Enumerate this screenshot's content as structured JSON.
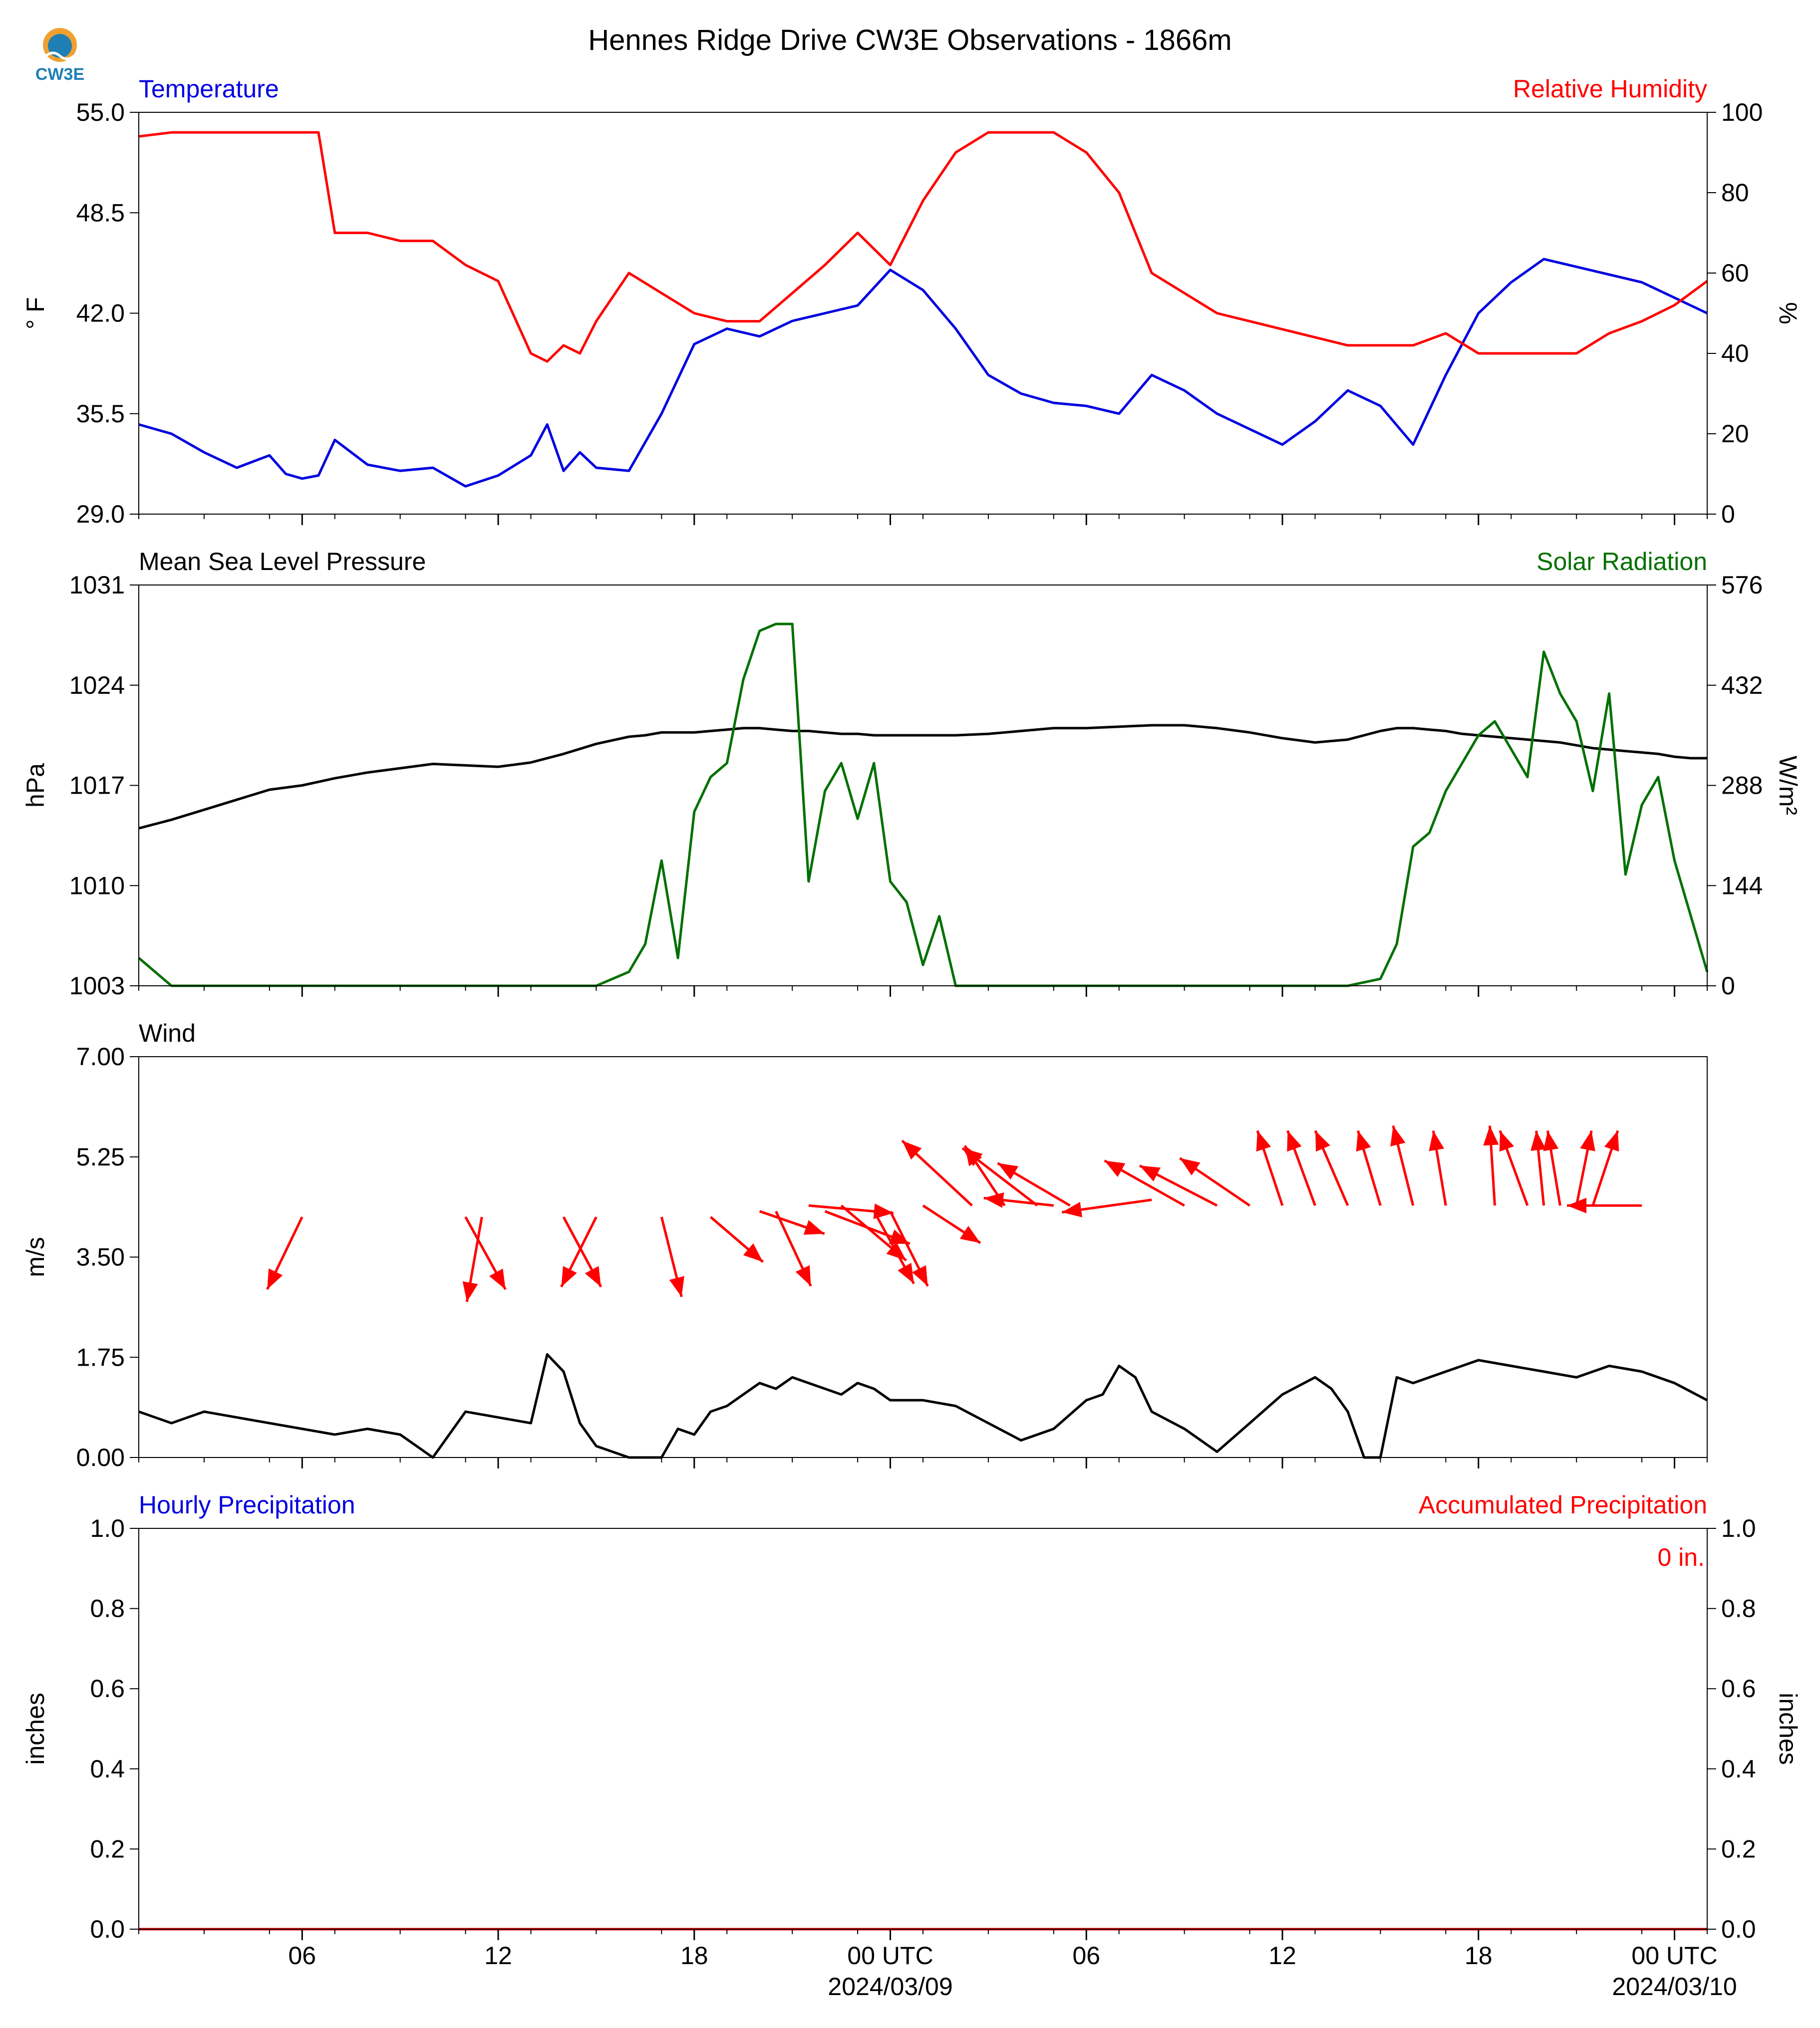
{
  "figure": {
    "title": "Hennes Ridge Drive CW3E Observations - 1866m",
    "logo_text": "CW3E",
    "colors": {
      "blue": "#0000e0",
      "red": "#ff0000",
      "green": "#007000",
      "black": "#000000",
      "logo_orange": "#f0a030",
      "logo_blue": "#1f7fb4"
    }
  },
  "chart_data": [
    {
      "id": "temp_rh",
      "type": "line",
      "left_label": "Temperature",
      "right_label": "Relative Humidity",
      "ylabel": "° F",
      "ylabel_right": "%",
      "ylim": [
        29.0,
        55.0
      ],
      "ylim_right": [
        0,
        100
      ],
      "yticks": [
        "29.0",
        "35.5",
        "42.0",
        "48.5",
        "55.0"
      ],
      "yticks_right": [
        "0",
        "20",
        "40",
        "60",
        "80",
        "100"
      ],
      "x": [
        0,
        1,
        2,
        3,
        4,
        4.5,
        5,
        5.5,
        6,
        7,
        8,
        9,
        10,
        11,
        12,
        12.5,
        13,
        13.5,
        14,
        15,
        16,
        17,
        18,
        19,
        20,
        21,
        22,
        23,
        24,
        25,
        26,
        27,
        28,
        29,
        30,
        31,
        32,
        33,
        34,
        35,
        36,
        37,
        38,
        39,
        40,
        41,
        42,
        43,
        44,
        45,
        46,
        47,
        48
      ],
      "series": [
        {
          "name": "Temperature",
          "color": "#0000e0",
          "axis": "left",
          "values": [
            34.8,
            34.2,
            33.0,
            32.0,
            32.8,
            31.6,
            31.3,
            31.5,
            33.8,
            32.2,
            31.8,
            32.0,
            30.8,
            31.5,
            32.8,
            34.8,
            31.8,
            33.0,
            32.0,
            31.8,
            35.5,
            40.0,
            41.0,
            40.5,
            41.5,
            42.0,
            42.5,
            44.8,
            43.5,
            41.0,
            38.0,
            36.8,
            36.2,
            36.0,
            35.5,
            38.0,
            37.0,
            35.5,
            34.5,
            33.5,
            35.0,
            37.0,
            36.0,
            33.5,
            38.0,
            42.0,
            44.0,
            45.5,
            45.0,
            44.5,
            44.0,
            43.0,
            42.0
          ]
        },
        {
          "name": "Relative Humidity",
          "color": "#ff0000",
          "axis": "right",
          "values": [
            94,
            95,
            95,
            95,
            95,
            95,
            95,
            95,
            70,
            70,
            68,
            68,
            62,
            58,
            40,
            38,
            42,
            40,
            48,
            60,
            55,
            50,
            48,
            48,
            55,
            62,
            70,
            62,
            78,
            90,
            95,
            95,
            95,
            90,
            80,
            60,
            55,
            50,
            48,
            46,
            44,
            42,
            42,
            42,
            45,
            40,
            40,
            40,
            40,
            45,
            48,
            52,
            58
          ]
        }
      ]
    },
    {
      "id": "mslp_solar",
      "type": "line",
      "left_label": "Mean Sea Level Pressure",
      "right_label": "Solar Radiation",
      "ylabel": "hPa",
      "ylabel_right": "W/m²",
      "ylim": [
        1003,
        1031
      ],
      "ylim_right": [
        0,
        576
      ],
      "yticks": [
        "1003",
        "1010",
        "1017",
        "1024",
        "1031"
      ],
      "yticks_right": [
        "0",
        "144",
        "288",
        "432",
        "576"
      ],
      "x": [
        0,
        1,
        2,
        3,
        4,
        5,
        6,
        7,
        8,
        9,
        10,
        11,
        12,
        13,
        14,
        15,
        15.5,
        16,
        16.5,
        17,
        17.5,
        18,
        18.5,
        19,
        19.5,
        20,
        20.5,
        21,
        21.5,
        22,
        22.5,
        23,
        23.5,
        24,
        24.5,
        25,
        26,
        27,
        28,
        29,
        30,
        31,
        32,
        33,
        34,
        35,
        36,
        37,
        38,
        38.5,
        39,
        39.5,
        40,
        40.5,
        41,
        41.5,
        42,
        42.5,
        43,
        43.5,
        44,
        44.5,
        45,
        45.5,
        46,
        46.5,
        47,
        47.5,
        48
      ],
      "series": [
        {
          "name": "Mean Sea Level Pressure",
          "color": "#000000",
          "axis": "left",
          "values": [
            1014.0,
            1014.6,
            1015.3,
            1016.0,
            1016.7,
            1017.0,
            1017.5,
            1017.9,
            1018.2,
            1018.5,
            1018.4,
            1018.3,
            1018.6,
            1019.2,
            1019.9,
            1020.4,
            1020.5,
            1020.7,
            1020.7,
            1020.7,
            1020.8,
            1020.9,
            1021.0,
            1021.0,
            1020.9,
            1020.8,
            1020.8,
            1020.7,
            1020.6,
            1020.6,
            1020.5,
            1020.5,
            1020.5,
            1020.5,
            1020.5,
            1020.5,
            1020.6,
            1020.8,
            1021.0,
            1021.0,
            1021.1,
            1021.2,
            1021.2,
            1021.0,
            1020.7,
            1020.3,
            1020.0,
            1020.2,
            1020.8,
            1021.0,
            1021.0,
            1020.9,
            1020.8,
            1020.6,
            1020.5,
            1020.4,
            1020.3,
            1020.2,
            1020.1,
            1020.0,
            1019.8,
            1019.6,
            1019.5,
            1019.4,
            1019.3,
            1019.2,
            1019.0,
            1018.9,
            1018.9
          ]
        },
        {
          "name": "Solar Radiation",
          "color": "#007000",
          "axis": "right",
          "values": [
            40,
            0,
            0,
            0,
            0,
            0,
            0,
            0,
            0,
            0,
            0,
            0,
            0,
            0,
            0,
            20,
            60,
            180,
            40,
            250,
            300,
            320,
            440,
            510,
            520,
            520,
            150,
            280,
            320,
            240,
            320,
            150,
            120,
            30,
            100,
            0,
            0,
            0,
            0,
            0,
            0,
            0,
            0,
            0,
            0,
            0,
            0,
            0,
            10,
            60,
            200,
            220,
            280,
            320,
            360,
            380,
            340,
            300,
            480,
            420,
            380,
            280,
            420,
            160,
            260,
            300,
            180,
            100,
            20
          ]
        }
      ]
    },
    {
      "id": "wind",
      "type": "line",
      "left_label": "Wind",
      "ylabel": "m/s",
      "ylim": [
        0.0,
        7.0
      ],
      "yticks": [
        "0.00",
        "1.75",
        "3.50",
        "5.25",
        "7.00"
      ],
      "x": [
        0,
        1,
        2,
        3,
        4,
        5,
        6,
        7,
        8,
        9,
        10,
        11,
        12,
        12.5,
        13,
        13.5,
        14,
        15,
        16,
        16.5,
        17,
        17.5,
        18,
        18.5,
        19,
        19.5,
        20,
        20.5,
        21,
        21.5,
        22,
        22.5,
        23,
        24,
        25,
        26,
        27,
        28,
        29,
        29.5,
        30,
        30.5,
        31,
        32,
        33,
        34,
        35,
        36,
        36.5,
        37,
        37.5,
        38,
        38.5,
        39,
        40,
        41,
        42,
        43,
        44,
        45,
        46,
        47,
        48
      ],
      "series": [
        {
          "name": "Wind speed",
          "color": "#000000",
          "axis": "left",
          "values": [
            0.8,
            0.6,
            0.8,
            0.7,
            0.6,
            0.5,
            0.4,
            0.5,
            0.4,
            0.0,
            0.8,
            0.7,
            0.6,
            1.8,
            1.5,
            0.6,
            0.2,
            0.0,
            0.0,
            0.5,
            0.4,
            0.8,
            0.9,
            1.1,
            1.3,
            1.2,
            1.4,
            1.3,
            1.2,
            1.1,
            1.3,
            1.2,
            1.0,
            1.0,
            0.9,
            0.6,
            0.3,
            0.5,
            1.0,
            1.1,
            1.6,
            1.4,
            0.8,
            0.5,
            0.1,
            0.6,
            1.1,
            1.4,
            1.2,
            0.8,
            0.0,
            0.0,
            1.4,
            1.3,
            1.5,
            1.7,
            1.6,
            1.5,
            1.4,
            1.6,
            1.5,
            1.3,
            1.0
          ]
        }
      ],
      "vectors": {
        "name": "Wind vectors",
        "color": "#ff0000",
        "points": [
          {
            "x": 5.0,
            "speed": 4.2,
            "u": -1.4,
            "v": -2.9
          },
          {
            "x": 10.0,
            "speed": 4.2,
            "u": 1.6,
            "v": -2.9
          },
          {
            "x": 10.5,
            "speed": 4.2,
            "u": -0.6,
            "v": -3.4
          },
          {
            "x": 13.0,
            "speed": 4.2,
            "u": 1.5,
            "v": -2.8
          },
          {
            "x": 14.0,
            "speed": 4.2,
            "u": -1.4,
            "v": -2.8
          },
          {
            "x": 16.0,
            "speed": 4.2,
            "u": 0.8,
            "v": -3.2
          },
          {
            "x": 17.5,
            "speed": 4.2,
            "u": 2.1,
            "v": -1.8
          },
          {
            "x": 19.0,
            "speed": 4.3,
            "u": 2.6,
            "v": -0.9
          },
          {
            "x": 19.5,
            "speed": 4.3,
            "u": 1.4,
            "v": -3.0
          },
          {
            "x": 20.5,
            "speed": 4.4,
            "u": 3.4,
            "v": -0.3
          },
          {
            "x": 21.0,
            "speed": 4.3,
            "u": 3.4,
            "v": -1.3
          },
          {
            "x": 21.5,
            "speed": 4.4,
            "u": 2.6,
            "v": -2.2
          },
          {
            "x": 22.5,
            "speed": 4.3,
            "u": 1.6,
            "v": -2.9
          },
          {
            "x": 23.0,
            "speed": 4.3,
            "u": 1.5,
            "v": -3.0
          },
          {
            "x": 24.0,
            "speed": 4.4,
            "u": 2.3,
            "v": -1.5
          },
          {
            "x": 25.5,
            "speed": 4.4,
            "u": -2.8,
            "v": 2.6
          },
          {
            "x": 26.5,
            "speed": 4.4,
            "u": -1.6,
            "v": 2.4
          },
          {
            "x": 27.5,
            "speed": 4.4,
            "u": -3.0,
            "v": 2.3
          },
          {
            "x": 28.0,
            "speed": 4.4,
            "u": -2.8,
            "v": 0.3
          },
          {
            "x": 28.5,
            "speed": 4.4,
            "u": -2.9,
            "v": 1.7
          },
          {
            "x": 31.0,
            "speed": 4.5,
            "u": -3.6,
            "v": -0.5
          },
          {
            "x": 32.0,
            "speed": 4.4,
            "u": -3.2,
            "v": 1.8
          },
          {
            "x": 33.0,
            "speed": 4.4,
            "u": -3.1,
            "v": 1.6
          },
          {
            "x": 34.0,
            "speed": 4.4,
            "u": -2.8,
            "v": 1.9
          },
          {
            "x": 35.0,
            "speed": 4.4,
            "u": -1.0,
            "v": 3.0
          },
          {
            "x": 36.0,
            "speed": 4.4,
            "u": -1.1,
            "v": 3.0
          },
          {
            "x": 37.0,
            "speed": 4.4,
            "u": -1.3,
            "v": 3.0
          },
          {
            "x": 38.0,
            "speed": 4.4,
            "u": -0.9,
            "v": 3.0
          },
          {
            "x": 39.0,
            "speed": 4.4,
            "u": -0.8,
            "v": 3.2
          },
          {
            "x": 40.0,
            "speed": 4.4,
            "u": -0.5,
            "v": 3.0
          },
          {
            "x": 41.5,
            "speed": 4.4,
            "u": -0.2,
            "v": 3.2
          },
          {
            "x": 42.5,
            "speed": 4.4,
            "u": -1.1,
            "v": 3.0
          },
          {
            "x": 43.0,
            "speed": 4.4,
            "u": -0.3,
            "v": 3.0
          },
          {
            "x": 43.5,
            "speed": 4.4,
            "u": -0.5,
            "v": 3.0
          },
          {
            "x": 44.0,
            "speed": 4.4,
            "u": 0.6,
            "v": 3.0
          },
          {
            "x": 44.5,
            "speed": 4.4,
            "u": 1.0,
            "v": 3.0
          },
          {
            "x": 46.0,
            "speed": 4.4,
            "u": -3.0,
            "v": 0.0
          }
        ]
      }
    },
    {
      "id": "precip",
      "type": "line",
      "left_label": "Hourly Precipitation",
      "right_label": "Accumulated Precipitation",
      "ylabel": "inches",
      "ylabel_right": "inches",
      "ylim": [
        0.0,
        1.0
      ],
      "ylim_right": [
        0.0,
        1.0
      ],
      "yticks": [
        "0.0",
        "0.2",
        "0.4",
        "0.6",
        "0.8",
        "1.0"
      ],
      "yticks_right": [
        "0.0",
        "0.2",
        "0.4",
        "0.6",
        "0.8",
        "1.0"
      ],
      "annotation": "0 in.",
      "x": [
        0,
        48
      ],
      "series": [
        {
          "name": "Hourly Precipitation",
          "color": "#0000e0",
          "axis": "left",
          "values": [
            0,
            0
          ]
        },
        {
          "name": "Accumulated Precipitation",
          "color": "#ff0000",
          "axis": "right",
          "values": [
            0,
            0
          ]
        }
      ]
    }
  ],
  "xaxis": {
    "range": [
      0,
      48
    ],
    "tick_labels": [
      {
        "x": 5,
        "label": "06"
      },
      {
        "x": 11,
        "label": "12"
      },
      {
        "x": 17,
        "label": "18"
      },
      {
        "x": 23,
        "label": "00 UTC",
        "date": "2024/03/09"
      },
      {
        "x": 29,
        "label": "06"
      },
      {
        "x": 35,
        "label": "12"
      },
      {
        "x": 41,
        "label": "18"
      },
      {
        "x": 47,
        "label": "00 UTC",
        "date": "2024/03/10"
      }
    ]
  }
}
